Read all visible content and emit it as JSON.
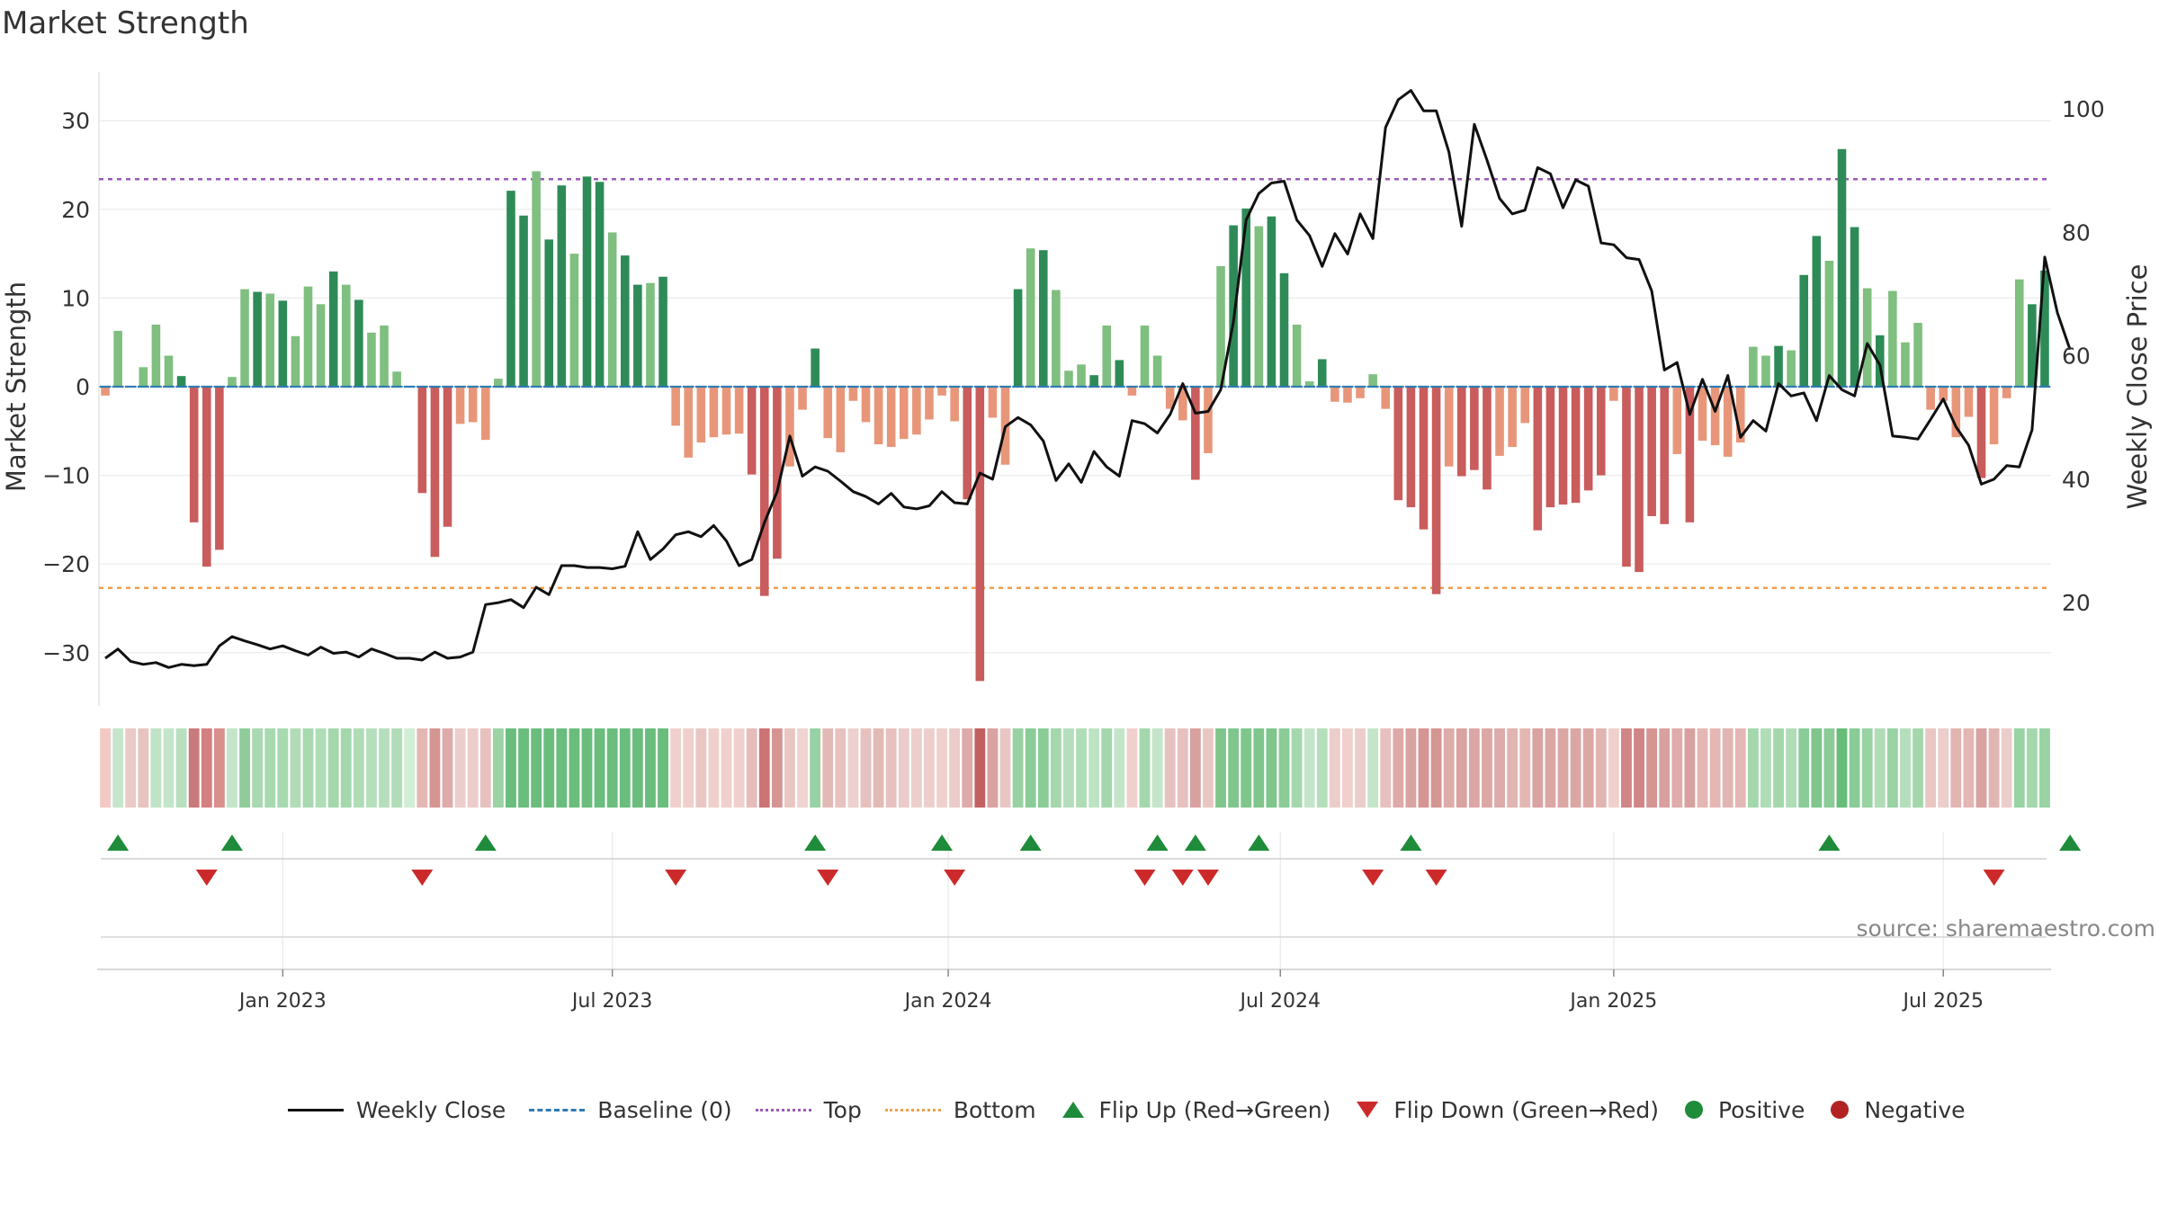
{
  "title": "Market Strength",
  "source": "source: sharemaestro.com",
  "colors": {
    "pos_dark": "#2e8b57",
    "pos_light": "#7fbf7f",
    "neg_dark": "#c95c5c",
    "neg_light": "#e8967a",
    "top": "#9b59b6",
    "bottom": "#f0a04b",
    "baseline": "#2e7bb4",
    "close": "#111111",
    "flip_up": "#1e8c3a",
    "flip_down": "#cc2a2a",
    "positive": "#1e8c3a",
    "negative": "#b22222"
  },
  "legend": [
    {
      "label": "Weekly Close",
      "icon": "solid-line"
    },
    {
      "label": "Baseline (0)",
      "icon": "dashed-line"
    },
    {
      "label": "Top",
      "icon": "dotted-line"
    },
    {
      "label": "Bottom",
      "icon": "dotted-line"
    },
    {
      "label": "Flip Up (Red→Green)",
      "icon": "triangle-up"
    },
    {
      "label": "Flip Down (Green→Red)",
      "icon": "triangle-down"
    },
    {
      "label": "Positive",
      "icon": "circle"
    },
    {
      "label": "Negative",
      "icon": "circle"
    }
  ],
  "chart_data": {
    "type": "bar",
    "ylabel": "Market Strength",
    "y2label": "Weekly Close Price",
    "ylim": [
      -35.5,
      35.5
    ],
    "y2lim": [
      4,
      106
    ],
    "yticks": [
      30,
      20,
      10,
      0,
      -10,
      -20,
      -30
    ],
    "yticklabels": [
      "30",
      "20",
      "10",
      "0",
      "−10",
      "−20",
      "−30"
    ],
    "y2ticks": [
      100,
      80,
      60,
      40,
      20
    ],
    "y2ticklabels": [
      "100",
      "80",
      "60",
      "40",
      "20"
    ],
    "xticks": [
      {
        "label": "Jan 2023",
        "week": 14
      },
      {
        "label": "Jul 2023",
        "week": 40
      },
      {
        "label": "Jan 2024",
        "week": 66.5
      },
      {
        "label": "Jul 2024",
        "week": 92.7
      },
      {
        "label": "Jan 2025",
        "week": 119
      },
      {
        "label": "Jul 2025",
        "week": 145
      }
    ],
    "top": 23.4,
    "bottom": -22.7,
    "baseline": 0,
    "strength": [
      -1,
      6.3,
      0,
      2.2,
      7,
      3.5,
      1.2,
      -15.3,
      -20.3,
      -18.4,
      1.1,
      11,
      10.7,
      10.5,
      9.7,
      5.7,
      11.3,
      9.3,
      13,
      11.5,
      9.8,
      6.1,
      6.9,
      1.7,
      0,
      -12,
      -19.2,
      -15.8,
      -4.2,
      -4,
      -6,
      0.9,
      22.1,
      19.3,
      24.3,
      16.6,
      22.7,
      15,
      23.7,
      23.1,
      17.4,
      14.8,
      11.5,
      11.7,
      12.4,
      -4.4,
      -8,
      -6.3,
      -5.7,
      -5.4,
      -5.3,
      -9.9,
      -23.6,
      -19.4,
      -9,
      -2.6,
      4.3,
      -5.8,
      -7.4,
      -1.6,
      -4,
      -6.5,
      -6.8,
      -5.9,
      -5.4,
      -3.7,
      -1,
      -3.9,
      -12.7,
      -33.2,
      -3.5,
      -8.8,
      11,
      15.6,
      15.4,
      10.9,
      1.8,
      2.5,
      1.3,
      6.9,
      3,
      -1,
      6.9,
      3.5,
      -2.5,
      -3.8,
      -10.5,
      -7.5,
      13.6,
      18.2,
      20.1,
      18.1,
      19.2,
      12.8,
      7,
      0.6,
      3.1,
      -1.7,
      -1.8,
      -1.3,
      1.4,
      -2.5,
      -12.8,
      -13.6,
      -16.1,
      -23.4,
      -9,
      -10.1,
      -9.4,
      -11.6,
      -7.8,
      -6.8,
      -4.1,
      -16.2,
      -13.6,
      -13.3,
      -13.1,
      -11.7,
      -10,
      -1.6,
      -20.3,
      -20.9,
      -14.6,
      -15.5,
      -7.6,
      -15.3,
      -6.1,
      -6.6,
      -7.9,
      -6.3,
      4.5,
      3.5,
      4.6,
      4.1,
      12.6,
      17,
      14.2,
      26.8,
      18,
      11.1,
      5.8,
      10.8,
      5,
      7.2,
      -2.6,
      -1.6,
      -5.7,
      -3.4,
      -10.3,
      -6.5,
      -1.3,
      12.1,
      9.3,
      13.1
    ],
    "weekly_close": [
      11,
      12.5,
      10.5,
      10,
      10.3,
      9.5,
      10,
      9.8,
      10,
      13,
      14.5,
      13.8,
      13.2,
      12.5,
      13,
      12.2,
      11.5,
      12.8,
      11.8,
      12,
      11.2,
      12.5,
      11.8,
      11,
      11,
      10.7,
      12,
      11,
      11.2,
      12,
      19.7,
      20,
      20.5,
      19.2,
      22.5,
      21.3,
      26,
      26,
      25.7,
      25.7,
      25.5,
      25.9,
      31.5,
      27,
      28.7,
      31,
      31.5,
      30.7,
      32.5,
      30,
      26,
      27,
      33,
      38,
      47,
      40.5,
      42,
      41.3,
      39.7,
      38,
      37.2,
      36,
      37.7,
      35.5,
      35.2,
      35.7,
      38,
      36.2,
      36,
      41,
      40,
      48.5,
      50,
      48.8,
      46.2,
      39.8,
      42.5,
      39.5,
      44.5,
      42,
      40.5,
      49.5,
      49,
      47.5,
      50.5,
      55.5,
      50.7,
      51,
      54.5,
      65.5,
      82,
      86.3,
      88,
      88.3,
      82,
      79.5,
      74.5,
      79.8,
      76.5,
      83,
      79,
      97,
      101.5,
      103,
      99.7,
      99.7,
      93,
      81,
      97.5,
      91.7,
      85.5,
      83,
      83.6,
      90.5,
      89.5,
      84,
      88.5,
      87.5,
      78.3,
      78,
      75.9,
      75.6,
      70.5,
      57.7,
      58.9,
      50.5,
      56.2,
      51,
      56.8,
      46.8,
      49.5,
      47.8,
      55.5,
      53.5,
      54,
      49.5,
      56.8,
      54.5,
      53.5,
      62,
      58.5,
      47,
      46.8,
      46.5,
      49.7,
      53,
      48.5,
      45.5,
      39.2,
      40,
      42.2,
      42,
      48,
      76,
      67,
      61
    ]
  },
  "scoreband": {
    "colors": [
      "#f3c9c3",
      "#c6e6cc",
      "#e9cac6",
      "#e7c4bf",
      "#c0e3c6",
      "#c4e5ca",
      "#b8dfc0",
      "#c97a7c",
      "#d47f80",
      "#d98f8e",
      "#c4e5ca",
      "#8fcc99",
      "#a8d9b0",
      "#a8d9b0",
      "#a8d9b0",
      "#b1dcb7",
      "#a8d9b0",
      "#aeddb6",
      "#a4d7ac",
      "#a4d7ac",
      "#b0dcb7",
      "#b5dfbc",
      "#b5dfbc",
      "#b1dcb8",
      "#d1eed6",
      "#e4b7b4",
      "#d59593",
      "#dcabaa",
      "#ebcdcb",
      "#ebcdcb",
      "#e6c1bf",
      "#9bd3a5",
      "#6abd7d",
      "#6abd7d",
      "#6abd7d",
      "#6abd7d",
      "#6abd7d",
      "#6abd7d",
      "#6abd7d",
      "#6abd7d",
      "#6abd7d",
      "#6abd7d",
      "#6abd7d",
      "#6abd7d",
      "#6abd7d",
      "#f0d0cc",
      "#f0d0cc",
      "#e8c7c3",
      "#f0d0cc",
      "#f0d0cc",
      "#f0d0cc",
      "#e5bcb9",
      "#cc7375",
      "#d59593",
      "#e8c7c3",
      "#efd4d1",
      "#98d1a3",
      "#e3b9b6",
      "#e6c1bf",
      "#ecd1cf",
      "#e6c1bf",
      "#e3b9b6",
      "#e6c1bf",
      "#eacccb",
      "#eccfcc",
      "#eccfcc",
      "#f0d0cc",
      "#eacccb",
      "#dcabaa",
      "#c2605f",
      "#d8a3a1",
      "#e8c7c3",
      "#98d1a3",
      "#8acb97",
      "#8acb97",
      "#a4d7ac",
      "#b5dfbc",
      "#b1dcb8",
      "#bee3c4",
      "#a4d7ac",
      "#c4e5ca",
      "#f0d0cc",
      "#a4d7ac",
      "#c4e5ca",
      "#e6c1bf",
      "#e6c1bf",
      "#d9a0a0",
      "#e8c7c3",
      "#7fc58c",
      "#7fc58c",
      "#7fc58c",
      "#7fc58c",
      "#7fc58c",
      "#8acb97",
      "#a4d7ac",
      "#c4e5ca",
      "#b5dfbc",
      "#ebcdcb",
      "#f0d0cc",
      "#ebcdcb",
      "#c4e5ca",
      "#e6c1bf",
      "#dea9a8",
      "#d8a3a1",
      "#d59593",
      "#d59593",
      "#dcabaa",
      "#d8a3a1",
      "#dba7a5",
      "#dca8a6",
      "#dcabaa",
      "#e1b5b2",
      "#e4b7b4",
      "#d8a3a1",
      "#dba7a5",
      "#dba7a5",
      "#dba7a5",
      "#dca8a6",
      "#e1b5b2",
      "#f0d0cc",
      "#d08586",
      "#d08586",
      "#d59593",
      "#d9a0a0",
      "#dfacab",
      "#d9a0a0",
      "#e4b7b4",
      "#e4b7b4",
      "#e1b5b2",
      "#e4b7b4",
      "#a4d7ac",
      "#b1dcb8",
      "#a4d7ac",
      "#b1dcb8",
      "#8acb97",
      "#7fc58c",
      "#8acb97",
      "#68bc7a",
      "#8acb97",
      "#99d2a3",
      "#aeddb6",
      "#99d2a3",
      "#b5dfbc",
      "#a4d7ac",
      "#e8c7c3",
      "#ebcdcb",
      "#e1b5b2",
      "#e4b7b4",
      "#d8a3a1",
      "#e1b5b2",
      "#ebcdcb",
      "#99d2a3",
      "#a4d7ac",
      "#99d2a3"
    ]
  },
  "flips": {
    "up": [
      1,
      10,
      30,
      56,
      66,
      73,
      83,
      86,
      91,
      103,
      136,
      155
    ],
    "down": [
      8,
      25,
      45,
      57,
      67,
      82,
      85,
      87,
      100,
      105,
      149
    ]
  }
}
